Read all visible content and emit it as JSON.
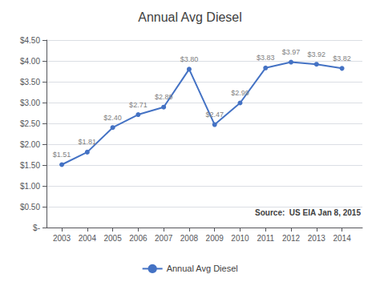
{
  "chart_data": {
    "type": "line",
    "title": "Annual Avg Diesel",
    "x": [
      2003,
      2004,
      2005,
      2006,
      2007,
      2008,
      2009,
      2010,
      2011,
      2012,
      2013,
      2014
    ],
    "series": [
      {
        "name": "Annual Avg Diesel",
        "color": "#4472C4",
        "marker": "circle",
        "values": [
          1.51,
          1.81,
          2.4,
          2.71,
          2.89,
          3.8,
          2.47,
          2.99,
          3.83,
          3.97,
          3.92,
          3.82
        ],
        "value_labels": [
          "$1.51",
          "$1.81",
          "$2.40",
          "$2.71",
          "$2.89",
          "$3.80",
          "$2.47",
          "$2.99",
          "$3.83",
          "$3.97",
          "$3.92",
          "$3.82"
        ]
      }
    ],
    "xlim": [
      2002.4,
      2014.8
    ],
    "xticks": [
      2003,
      2004,
      2005,
      2006,
      2007,
      2008,
      2009,
      2010,
      2011,
      2012,
      2013,
      2014
    ],
    "ylim": [
      0,
      4.5
    ],
    "yticks": [
      {
        "value": 0,
        "label": "$-"
      },
      {
        "value": 0.5,
        "label": "$0.50"
      },
      {
        "value": 1,
        "label": "$1.00"
      },
      {
        "value": 1.5,
        "label": "$1.50"
      },
      {
        "value": 2,
        "label": "$2.00"
      },
      {
        "value": 2.5,
        "label": "$2.50"
      },
      {
        "value": 3,
        "label": "$3.00"
      },
      {
        "value": 3.5,
        "label": "$3.50"
      },
      {
        "value": 4,
        "label": "$4.00"
      },
      {
        "value": 4.5,
        "label": "$4.50"
      }
    ],
    "grid": "y",
    "legend": "bottom",
    "data_labels": true,
    "annotations": [
      "Source:  US EIA Jan 8, 2015"
    ]
  }
}
